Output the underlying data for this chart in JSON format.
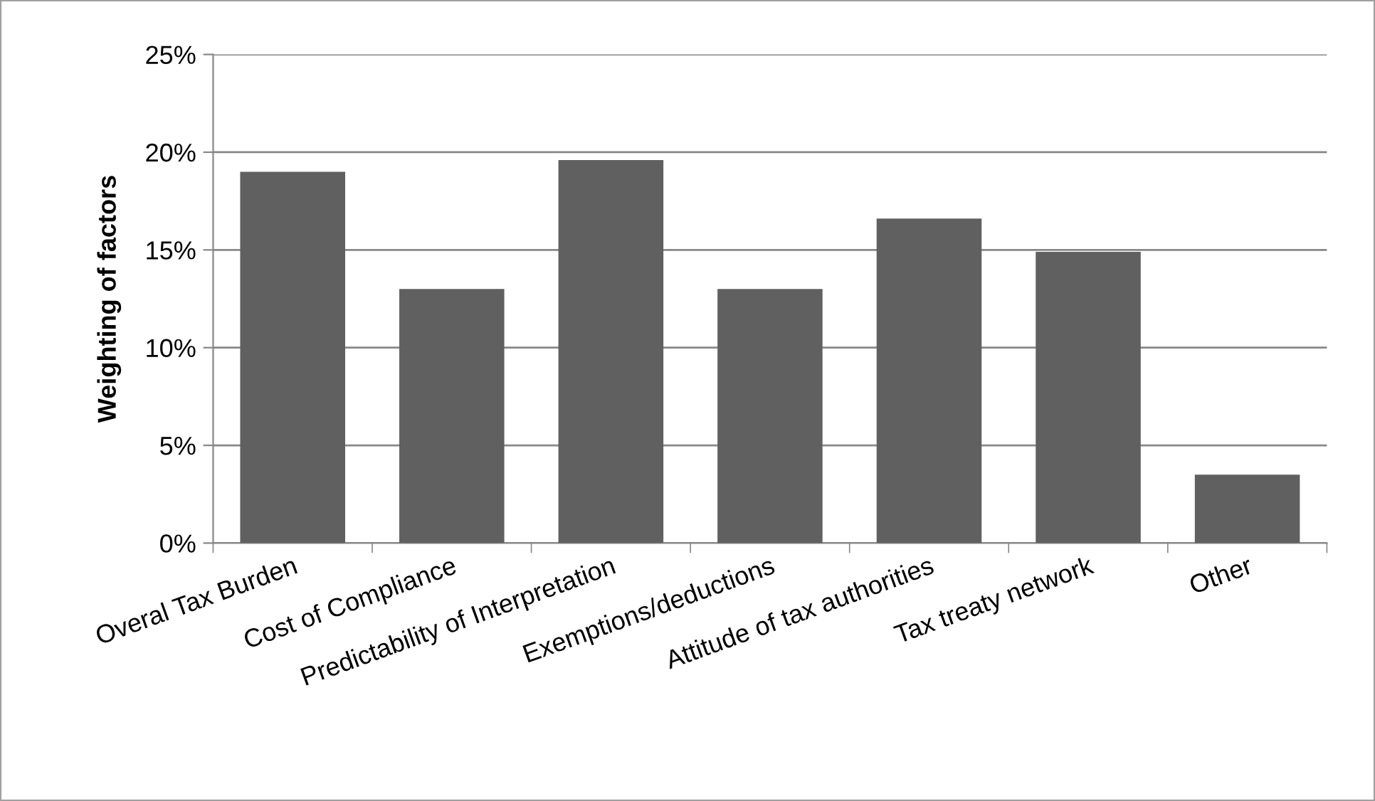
{
  "chart_data": {
    "type": "bar",
    "ylabel": "Weighting of factors",
    "categories": [
      "Overal Tax Burden",
      "Cost of Compliance",
      "Predictability of Interpretation",
      "Exemptions/deductions",
      "Attitude of tax authorities",
      "Tax treaty network",
      "Other"
    ],
    "values": [
      19.0,
      13.0,
      19.6,
      13.0,
      16.6,
      14.9,
      3.5
    ],
    "color": "#606060",
    "ylim": [
      0,
      25
    ],
    "yticks": [
      {
        "value": 0,
        "label": "0%"
      },
      {
        "value": 5,
        "label": "5%"
      },
      {
        "value": 10,
        "label": "10%"
      },
      {
        "value": 15,
        "label": "15%"
      },
      {
        "value": 20,
        "label": "20%"
      },
      {
        "value": 25,
        "label": "25%"
      }
    ],
    "grid": "y",
    "legend": false
  }
}
